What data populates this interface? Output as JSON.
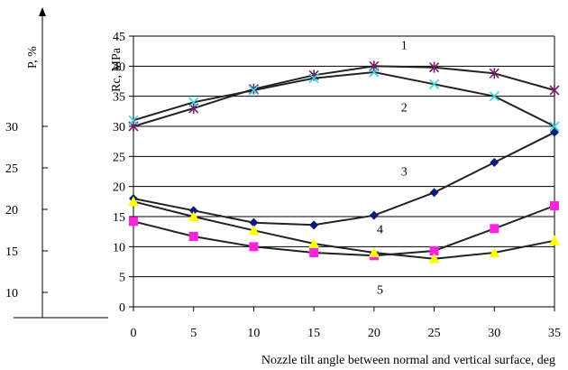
{
  "chart_data": {
    "type": "line",
    "xlabel": "Nozzle tilt angle between normal and vertical surface, deg",
    "ylabel": "Rc, MPa",
    "secondary_axis": {
      "label": "P, %",
      "ticks": [
        "30",
        "25",
        "20",
        "15",
        "10"
      ]
    },
    "x": [
      0,
      5,
      10,
      15,
      20,
      25,
      30,
      35
    ],
    "xlim": [
      0,
      35
    ],
    "ylim": [
      0,
      45
    ],
    "y_ticks": [
      0,
      5,
      10,
      15,
      20,
      25,
      30,
      35,
      40,
      45
    ],
    "grid": "horizontal",
    "series": [
      {
        "name": "1",
        "marker": "star",
        "color": "#7a1f6e",
        "values": [
          30,
          33,
          36.2,
          38.5,
          40,
          39.8,
          38.8,
          36
        ]
      },
      {
        "name": "2",
        "marker": "x",
        "color": "#33d6e0",
        "values": [
          31,
          34,
          36,
          38,
          39,
          37,
          35,
          30
        ]
      },
      {
        "name": "3",
        "marker": "diamond",
        "color": "#0d1a7a",
        "values": [
          18,
          16,
          14,
          13.6,
          15.2,
          19,
          24,
          29
        ]
      },
      {
        "name": "4",
        "marker": "square",
        "color": "#ff22dd",
        "values": [
          14.2,
          11.7,
          10,
          9,
          8.5,
          9.3,
          13,
          16.8
        ]
      },
      {
        "name": "5",
        "marker": "triangle",
        "color": "#ffff00",
        "values": [
          17.5,
          15,
          12.7,
          10.5,
          9,
          8,
          9,
          11
        ]
      }
    ],
    "series_labels": [
      {
        "text": "1",
        "x": 22.5,
        "y": 42.8
      },
      {
        "text": "2",
        "x": 22.5,
        "y": 32.5
      },
      {
        "text": "3",
        "x": 22.5,
        "y": 21.8
      },
      {
        "text": "4",
        "x": 20.5,
        "y": 12.2
      },
      {
        "text": "5",
        "x": 20.5,
        "y": 2.2
      }
    ]
  }
}
